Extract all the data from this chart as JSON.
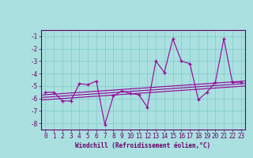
{
  "xlabel": "Windchill (Refroidissement éolien,°C)",
  "x": [
    0,
    1,
    2,
    3,
    4,
    5,
    6,
    7,
    8,
    9,
    10,
    11,
    12,
    13,
    14,
    15,
    16,
    17,
    18,
    19,
    20,
    21,
    22,
    23
  ],
  "y": [
    -5.5,
    -5.5,
    -6.2,
    -6.2,
    -4.8,
    -4.9,
    -4.6,
    -8.1,
    -5.8,
    -5.4,
    -5.6,
    -5.7,
    -6.7,
    -3.0,
    -3.9,
    -1.2,
    -3.0,
    -3.2,
    -6.1,
    -5.5,
    -4.7,
    -1.2,
    -4.7,
    -4.7
  ],
  "ylim": [
    -8.5,
    -0.5
  ],
  "xlim": [
    -0.5,
    23.5
  ],
  "yticks": [
    -8,
    -7,
    -6,
    -5,
    -4,
    -3,
    -2,
    -1
  ],
  "xticks": [
    0,
    1,
    2,
    3,
    4,
    5,
    6,
    7,
    8,
    9,
    10,
    11,
    12,
    13,
    14,
    15,
    16,
    17,
    18,
    19,
    20,
    21,
    22,
    23
  ],
  "line_color": "#990099",
  "bg_color": "#aae0e0",
  "grid_color": "#88cccc",
  "text_color": "#660066",
  "axis_color": "#660066",
  "trend_lines": [
    {
      "x0": -0.5,
      "x1": 23.5,
      "y0": -5.724,
      "y1": -4.6
    },
    {
      "x0": -0.5,
      "x1": 23.5,
      "y0": -5.924,
      "y1": -4.8
    },
    {
      "x0": -0.5,
      "x1": 23.5,
      "y0": -6.124,
      "y1": -5.0
    }
  ]
}
